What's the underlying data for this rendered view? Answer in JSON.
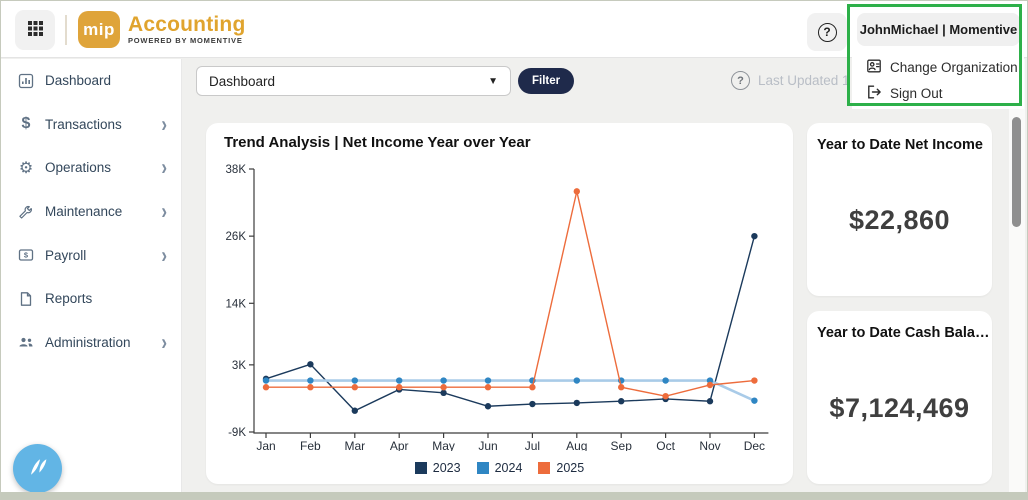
{
  "header": {
    "brand": {
      "logo_text": "mip",
      "app_name": "Accounting",
      "tagline": "POWERED BY MOMENTIVE"
    },
    "help_label": "?",
    "user_menu": {
      "button_label": "JohnMichael | Momentive",
      "items": [
        {
          "label": "Change Organization",
          "icon": "organization-card-icon"
        },
        {
          "label": "Sign Out",
          "icon": "sign-out-icon"
        }
      ]
    }
  },
  "sidebar": {
    "items": [
      {
        "label": "Dashboard",
        "icon": "dashboard-icon",
        "has_submenu": false
      },
      {
        "label": "Transactions",
        "icon": "dollar-icon",
        "has_submenu": true
      },
      {
        "label": "Operations",
        "icon": "gear-icon",
        "has_submenu": true
      },
      {
        "label": "Maintenance",
        "icon": "wrench-icon",
        "has_submenu": true
      },
      {
        "label": "Payroll",
        "icon": "banknote-icon",
        "has_submenu": true
      },
      {
        "label": "Reports",
        "icon": "document-icon",
        "has_submenu": false
      },
      {
        "label": "Administration",
        "icon": "people-icon",
        "has_submenu": true
      }
    ]
  },
  "toolbar": {
    "dashboard_select_value": "Dashboard",
    "filter_label": "Filter",
    "last_updated_text": "Last Updated 1",
    "last_updated_help": "?"
  },
  "cards": {
    "net_income": {
      "title": "Year to Date Net Income",
      "value": "$22,860"
    },
    "cash_balance": {
      "title": "Year to Date Cash Bala…",
      "value": "$7,124,469"
    }
  },
  "chart_data": {
    "type": "line",
    "title": "Trend Analysis | Net Income Year over Year",
    "categories": [
      "Jan",
      "Feb",
      "Mar",
      "Apr",
      "May",
      "Jun",
      "Jul",
      "Aug",
      "Sep",
      "Oct",
      "Nov",
      "Dec"
    ],
    "series": [
      {
        "name": "2023",
        "color": "#1b3a5c",
        "line_color": "#1b3a5c",
        "line_width": 1.4,
        "values": [
          500,
          3100,
          -5200,
          -1400,
          -2000,
          -4400,
          -4000,
          -3800,
          -3500,
          -3100,
          -3500,
          26000
        ]
      },
      {
        "name": "2024",
        "color": "#2f86c3",
        "line_color": "#a9cbe8",
        "line_width": 2.6,
        "values": [
          200,
          200,
          200,
          200,
          200,
          200,
          200,
          200,
          200,
          200,
          200,
          -3400
        ]
      },
      {
        "name": "2025",
        "color": "#ed6c3c",
        "line_color": "#ed6c3c",
        "line_width": 1.4,
        "values": [
          -1000,
          -1000,
          -1000,
          -1000,
          -1000,
          -1000,
          -1000,
          34000,
          -1000,
          -2600,
          -600,
          200
        ]
      }
    ],
    "ytick_labels": [
      "38K",
      "26K",
      "14K",
      "3K",
      "-9K"
    ],
    "ytick_values": [
      38000,
      26000,
      14000,
      3000,
      -9000
    ],
    "ylim": [
      -9000,
      38000
    ],
    "grid": false,
    "legend_position": "bottom"
  },
  "colors": {
    "brand_gold": "#dfa43a",
    "filter_navy": "#1f2a4b",
    "annotation_green": "#2db049",
    "fab_blue": "#62b5e5",
    "main_background": "#f0f0ee"
  }
}
